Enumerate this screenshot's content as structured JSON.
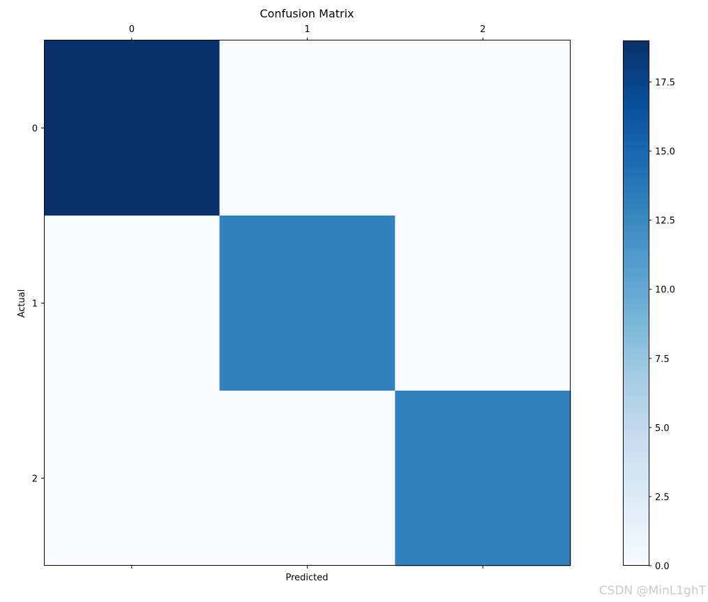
{
  "chart_data": {
    "type": "heatmap",
    "title": "Confusion Matrix",
    "xlabel": "Predicted",
    "ylabel": "Actual",
    "x_categories": [
      "0",
      "1",
      "2"
    ],
    "y_categories": [
      "0",
      "1",
      "2"
    ],
    "values": [
      [
        19,
        0,
        0
      ],
      [
        0,
        13,
        0
      ],
      [
        0,
        0,
        13
      ]
    ],
    "x_tick_position": "top",
    "colormap": "Blues",
    "colorbar": {
      "range": [
        0,
        19
      ],
      "ticks": [
        0.0,
        2.5,
        5.0,
        7.5,
        10.0,
        12.5,
        15.0,
        17.5
      ],
      "tick_labels": [
        "0.0",
        "2.5",
        "5.0",
        "7.5",
        "10.0",
        "12.5",
        "15.0",
        "17.5"
      ]
    },
    "grid": false
  },
  "watermark": "CSDN @MinL1ghT"
}
